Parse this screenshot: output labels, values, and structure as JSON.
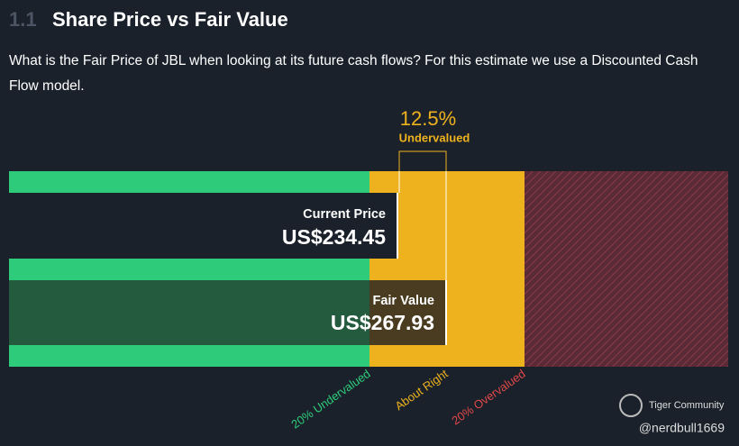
{
  "header": {
    "section": "1.1",
    "title": "Share Price vs Fair Value"
  },
  "description": "What is the Fair Price of JBL when looking at its future cash flows? For this estimate we use a Discounted Cash Flow model.",
  "valuation": {
    "difference": "12.5%",
    "status": "Undervalued",
    "current_price": {
      "label": "Current Price",
      "value": "US$234.45"
    },
    "fair_value": {
      "label": "Fair Value",
      "value": "US$267.93"
    },
    "zones": [
      "20% Undervalued",
      "About Right",
      "20% Overvalued"
    ]
  },
  "watermark": {
    "brand": "Tiger Community",
    "user": "@nerdbull1669"
  }
}
